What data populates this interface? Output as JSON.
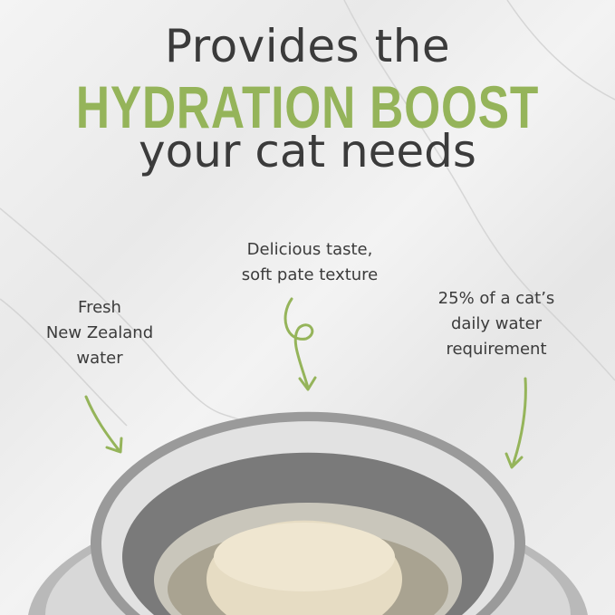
{
  "headline": {
    "line1": "Provides the",
    "line2": "HYDRATION BOOST",
    "line3": "your cat needs"
  },
  "callouts": {
    "center": [
      "Delicious taste,",
      "soft pate texture"
    ],
    "left": [
      "Fresh",
      "New Zealand",
      "water"
    ],
    "right": [
      "25% of a cat’s",
      "daily water",
      "requirement"
    ]
  },
  "colors": {
    "accent": "#95b45a",
    "text": "#3b3b3b"
  },
  "icons": [
    "arrow-down-left",
    "curly-arrow-down",
    "arrow-down"
  ]
}
